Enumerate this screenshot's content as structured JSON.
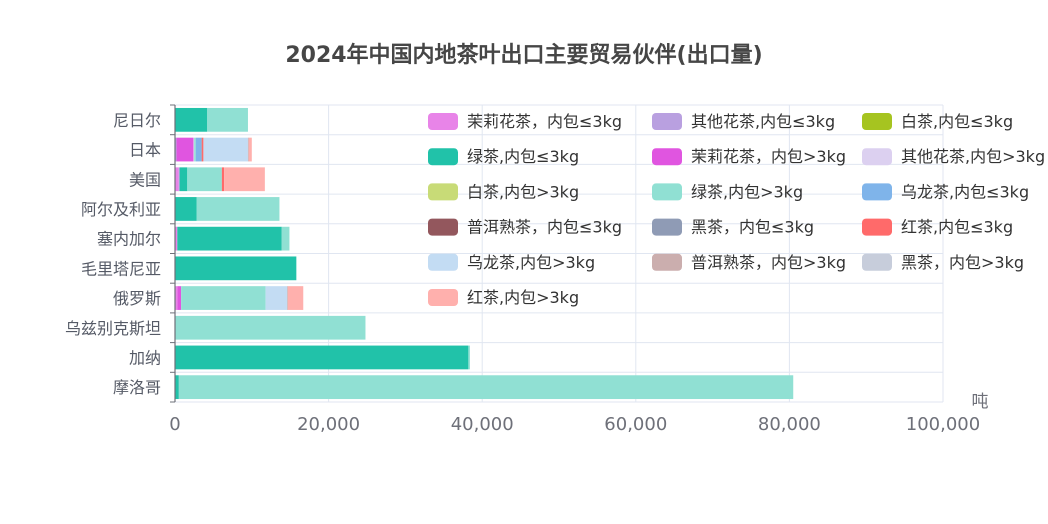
{
  "chart_data": {
    "type": "bar",
    "orientation": "horizontal",
    "stacked": true,
    "title": "2024年中国内地茶叶出口主要贸易伙伴(出口量)",
    "xlabel": "吨",
    "ylabel": "",
    "xlim": [
      0,
      100000
    ],
    "x_ticks": [
      "0",
      "20,000",
      "40,000",
      "60,000",
      "80,000",
      "100,000"
    ],
    "grid": true,
    "legend_position": "top-right",
    "categories": [
      "尼日尔",
      "日本",
      "美国",
      "阿尔及利亚",
      "塞内加尔",
      "毛里塔尼亚",
      "俄罗斯",
      "乌兹别克斯坦",
      "加纳",
      "摩洛哥"
    ],
    "series": [
      {
        "name": "茉莉花茶，内包≤3kg",
        "color": "#e884e8",
        "values": [
          0,
          0,
          500,
          0,
          300,
          0,
          300,
          0,
          0,
          0
        ]
      },
      {
        "name": "其他花茶,内包≤3kg",
        "color": "#b9a0e0",
        "values": [
          0,
          200,
          100,
          0,
          0,
          0,
          0,
          0,
          0,
          0
        ]
      },
      {
        "name": "白茶,内包≤3kg",
        "color": "#a6c420",
        "values": [
          0,
          0,
          0,
          0,
          0,
          0,
          0,
          0,
          0,
          0
        ]
      },
      {
        "name": "绿茶,内包≤3kg",
        "color": "#21c2a9",
        "values": [
          4200,
          0,
          1000,
          2800,
          13600,
          15800,
          0,
          0,
          38200,
          500
        ]
      },
      {
        "name": "茉莉花茶，内包>3kg",
        "color": "#e055e0",
        "values": [
          0,
          2200,
          0,
          0,
          0,
          0,
          500,
          0,
          0,
          0
        ]
      },
      {
        "name": "其他花茶,内包>3kg",
        "color": "#dcd0f0",
        "values": [
          0,
          100,
          0,
          0,
          0,
          0,
          0,
          0,
          0,
          0
        ]
      },
      {
        "name": "白茶,内包>3kg",
        "color": "#c8db77",
        "values": [
          0,
          0,
          0,
          0,
          0,
          0,
          0,
          0,
          0,
          0
        ]
      },
      {
        "name": "绿茶,内包>3kg",
        "color": "#90e0d3",
        "values": [
          5300,
          200,
          4500,
          10800,
          1000,
          0,
          11000,
          24800,
          200,
          80000
        ]
      },
      {
        "name": "乌龙茶,内包≤3kg",
        "color": "#7fb4ea",
        "values": [
          0,
          700,
          0,
          0,
          0,
          0,
          0,
          0,
          0,
          0
        ]
      },
      {
        "name": "普洱熟茶，内包≤3kg",
        "color": "#93575d",
        "values": [
          0,
          0,
          0,
          0,
          0,
          0,
          0,
          0,
          0,
          0
        ]
      },
      {
        "name": "黑茶，内包≤3kg",
        "color": "#8f9bb5",
        "values": [
          0,
          100,
          0,
          0,
          0,
          0,
          0,
          0,
          0,
          0
        ]
      },
      {
        "name": "红茶,内包≤3kg",
        "color": "#ff6a6a",
        "values": [
          0,
          200,
          300,
          0,
          0,
          0,
          0,
          0,
          0,
          0
        ]
      },
      {
        "name": "乌龙茶,内包>3kg",
        "color": "#c3dcf3",
        "values": [
          0,
          5800,
          0,
          0,
          0,
          0,
          2800,
          0,
          0,
          0
        ]
      },
      {
        "name": "普洱熟茶，内包>3kg",
        "color": "#cbaeae",
        "values": [
          0,
          100,
          0,
          0,
          0,
          0,
          100,
          0,
          0,
          0
        ]
      },
      {
        "name": "黑茶，内包>3kg",
        "color": "#c7cddb",
        "values": [
          0,
          0,
          0,
          0,
          0,
          0,
          0,
          0,
          0,
          0
        ]
      },
      {
        "name": "红茶,内包>3kg",
        "color": "#ffb0ad",
        "values": [
          0,
          400,
          5300,
          0,
          0,
          0,
          2000,
          0,
          0,
          0
        ]
      }
    ]
  }
}
